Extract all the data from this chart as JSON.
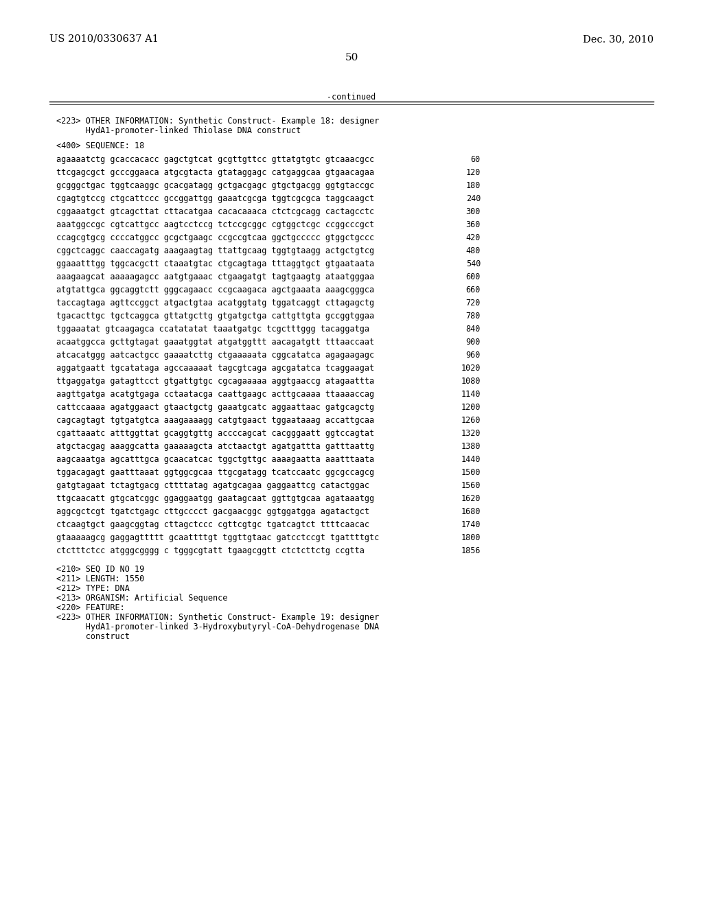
{
  "header_left": "US 2010/0330637 A1",
  "header_right": "Dec. 30, 2010",
  "page_number": "50",
  "continued_label": "-continued",
  "background_color": "#ffffff",
  "text_color": "#000000",
  "font_size_header": 10.5,
  "font_size_body": 8.5,
  "font_size_page": 11,
  "section_info": [
    "<223> OTHER INFORMATION: Synthetic Construct- Example 18: designer",
    "      HydA1-promoter-linked Thiolase DNA construct"
  ],
  "sequence_label": "<400> SEQUENCE: 18",
  "sequence_lines": [
    [
      "agaaaatctg gcaccacacc gagctgtcat gcgttgttcc gttatgtgtc gtcaaacgcc",
      "60"
    ],
    [
      "ttcgagcgct gcccggaaca atgcgtacta gtataggagc catgaggcaa gtgaacagaa",
      "120"
    ],
    [
      "gcgggctgac tggtcaaggc gcacgatagg gctgacgagc gtgctgacgg ggtgtaccgc",
      "180"
    ],
    [
      "cgagtgtccg ctgcattccc gccggattgg gaaatcgcga tggtcgcgca taggcaagct",
      "240"
    ],
    [
      "cggaaatgct gtcagcttat cttacatgaa cacacaaaca ctctcgcagg cactagcctc",
      "300"
    ],
    [
      "aaatggccgc cgtcattgcc aagtcctccg tctccgcggc cgtggctcgc ccggcccgct",
      "360"
    ],
    [
      "ccagcgtgcg ccccatggcc gcgctgaagc ccgccgtcaa ggctgccccc gtggctgccc",
      "420"
    ],
    [
      "cggctcaggc caaccagatg aaagaagtag ttattgcaag tggtgtaagg actgctgtcg",
      "480"
    ],
    [
      "ggaaatttgg tggcacgctt ctaaatgtac ctgcagtaga tttaggtgct gtgaataata",
      "540"
    ],
    [
      "aaagaagcat aaaaagagcc aatgtgaaac ctgaagatgt tagtgaagtg ataatgggaa",
      "600"
    ],
    [
      "atgtattgca ggcaggtctt gggcagaacc ccgcaagaca agctgaaata aaagcgggca",
      "660"
    ],
    [
      "taccagtaga agttccggct atgactgtaa acatggtatg tggatcaggt cttagagctg",
      "720"
    ],
    [
      "tgacacttgc tgctcaggca gttatgcttg gtgatgctga cattgttgta gccggtggaa",
      "780"
    ],
    [
      "tggaaatat gtcaagagca ccatatatat taaatgatgc tcgctttggg tacaggatga",
      "840"
    ],
    [
      "acaatggcca gcttgtagat gaaatggtat atgatggttt aacagatgtt tttaaccaat",
      "900"
    ],
    [
      "atcacatggg aatcactgcc gaaaatcttg ctgaaaaata cggcatatca agagaagagc",
      "960"
    ],
    [
      "aggatgaatt tgcatataga agccaaaaat tagcgtcaga agcgatatca tcaggaagat",
      "1020"
    ],
    [
      "ttgaggatga gatagttcct gtgattgtgc cgcagaaaaa aggtgaaccg atagaattta",
      "1080"
    ],
    [
      "aagttgatga acatgtgaga cctaatacga caattgaagc acttgcaaaa ttaaaaccag",
      "1140"
    ],
    [
      "cattccaaaa agatggaact gtaactgctg gaaatgcatc aggaattaac gatgcagctg",
      "1200"
    ],
    [
      "cagcagtagt tgtgatgtca aaagaaaagg catgtgaact tggaataaag accattgcaa",
      "1260"
    ],
    [
      "cgattaaatc atttggttat gcaggtgttg accccagcat cacgggaatt ggtccagtat",
      "1320"
    ],
    [
      "atgctacgag aaaggcatta gaaaaagcta atctaactgt agatgattta gatttaattg",
      "1380"
    ],
    [
      "aagcaaatga agcatttgca gcaacatcac tggctgttgc aaaagaatta aaatttaata",
      "1440"
    ],
    [
      "tggacagagt gaatttaaat ggtggcgcaa ttgcgatagg tcatccaatc ggcgccagcg",
      "1500"
    ],
    [
      "gatgtagaat tctagtgacg cttttatag agatgcagaa gaggaattcg catactggac",
      "1560"
    ],
    [
      "ttgcaacatt gtgcatcggc ggaggaatgg gaatagcaat ggttgtgcaa agataaatgg",
      "1620"
    ],
    [
      "aggcgctcgt tgatctgagc cttgcccct gacgaacggc ggtggatgga agatactgct",
      "1680"
    ],
    [
      "ctcaagtgct gaagcggtag cttagctccc cgttcgtgc tgatcagtct ttttcaacac",
      "1740"
    ],
    [
      "gtaaaaagcg gaggagttttt gcaattttgt tggttgtaac gatcctccgt tgattttgtc",
      "1800"
    ],
    [
      "ctctttctcc atgggcgggg c tgggcgtatt tgaagcggtt ctctcttctg ccgtta",
      "1856"
    ]
  ],
  "footer_lines": [
    "<210> SEQ ID NO 19",
    "<211> LENGTH: 1550",
    "<212> TYPE: DNA",
    "<213> ORGANISM: Artificial Sequence",
    "<220> FEATURE:",
    "<223> OTHER INFORMATION: Synthetic Construct- Example 19: designer",
    "      HydA1-promoter-linked 3-Hydroxybutyryl-CoA-Dehydrogenase DNA",
    "      construct"
  ]
}
